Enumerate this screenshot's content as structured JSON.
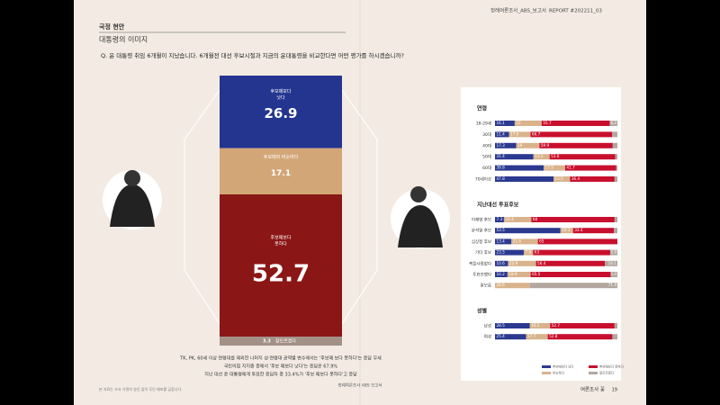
{
  "header": {
    "section": "국정 현안",
    "subtitle": "대통령의 이미지",
    "report": "정례여론조사_ABS_보고서",
    "report_no": "REPORT #202211_03"
  },
  "question": "Q. 윤 대통령 취임 6개월이 지났습니다. 6개월전 대선 후보시절과 지금의 윤대통령을 비교한다면 어떤 평가를 하시겠습니까?",
  "main_chart": {
    "segments": [
      {
        "label_lines": [
          "후보때보다",
          "낫다"
        ],
        "value": 26.9,
        "color": "#24358f"
      },
      {
        "label_lines": [
          "후보때와 비슷하다"
        ],
        "value": 17.1,
        "color": "#d3a677"
      },
      {
        "label_lines": [
          "후보때보다",
          "못하다"
        ],
        "value": 52.7,
        "color": "#8b1616"
      },
      {
        "label_lines": [
          "잘모르겠다"
        ],
        "value": 3.3,
        "color": "#a39187"
      }
    ]
  },
  "panel": {
    "colors": [
      "#2b3990",
      "#d9b38c",
      "#c8102e",
      "#b3a79f"
    ],
    "groups": [
      {
        "title": "연령",
        "rows": [
          {
            "label": "18-29세",
            "values": [
              16.1,
              22.0,
              55.7,
              6.2
            ]
          },
          {
            "label": "30대",
            "values": [
              11.4,
              17.6,
              66.7,
              4.3
            ]
          },
          {
            "label": "40대",
            "values": [
              17.3,
              19.0,
              59.9,
              3.8
            ]
          },
          {
            "label": "50대",
            "values": [
              31.4,
              13.2,
              53.6,
              1.8
            ]
          },
          {
            "label": "60대",
            "values": [
              39.8,
              17.5,
              41.7,
              1.0
            ]
          },
          {
            "label": "70세이상",
            "values": [
              47.8,
              13.5,
              36.4,
              2.3
            ]
          }
        ]
      },
      {
        "title": "지난대선 투표후보",
        "rows": [
          {
            "label": "이재명 후보",
            "values": [
              7.3,
              22.4,
              68.0,
              2.3
            ]
          },
          {
            "label": "윤석열 후보",
            "values": [
              53.5,
              10.3,
              33.4,
              2.8
            ]
          },
          {
            "label": "심상정 후보",
            "values": [
              13.4,
              21.6,
              65.0,
              0
            ]
          },
          {
            "label": "기타 후보",
            "values": [
              23.5,
              7.6,
              63.0,
              5.9
            ]
          },
          {
            "label": "찍을사람없다",
            "values": [
              10.6,
              22.9,
              56.4,
              10.1
            ]
          },
          {
            "label": "투표안했다",
            "values": [
              10.2,
              18.9,
              65.5,
              5.4
            ]
          },
          {
            "label": "잘모름",
            "values": [
              0,
              28.6,
              0,
              71.4
            ]
          }
        ]
      },
      {
        "title": "성별",
        "rows": [
          {
            "label": "남성",
            "values": [
              28.5,
              16.5,
              52.7,
              2.3
            ]
          },
          {
            "label": "여성",
            "values": [
              25.4,
              17.7,
              52.8,
              4.1
            ]
          }
        ]
      }
    ],
    "legend": [
      "후보때보다 낫다",
      "비슷하다",
      "후보때보다 못하다",
      "잘모르겠다"
    ]
  },
  "notes": [
    "TK, PK, 60세 이상 연령대를 제외한 나머지 성·연령대·권역별 변수에서는 '후보때 보다 못하다'는 응답 우세",
    "국민의힘 지지층 중에서 '후보 때보다 낫다'는 응답은 67.9%",
    "지난 대선 윤 대통령에게 투표한 응답자 중 33.4%가 '후보 때보다 못하다'고 응답"
  ],
  "footer": {
    "left": "본 자료는 조사 기관의 승인 없이 무단 배포를 금합니다.",
    "center": "정례여론조사 ABS 보고서",
    "right": "여론조사 꽃",
    "page": "19"
  }
}
